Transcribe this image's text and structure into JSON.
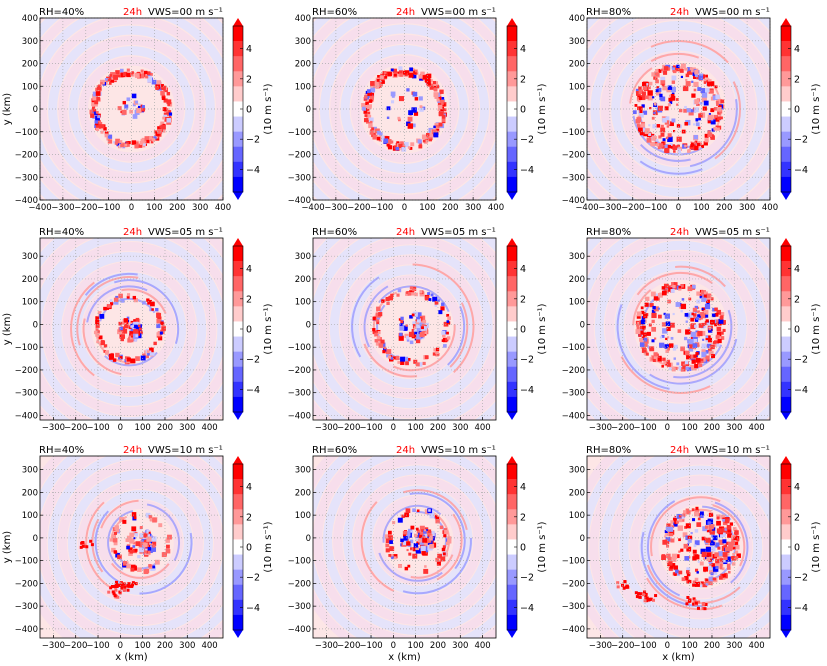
{
  "figure": {
    "time_label": "24h",
    "time_color": "#ff0000",
    "colorbar": {
      "label": "(10 m s⁻¹)",
      "ticks": [
        "4",
        "2",
        "0",
        "−2",
        "−4"
      ],
      "levels": [
        5,
        4,
        3,
        2,
        1,
        0,
        -1,
        -2,
        -3,
        -4,
        -5
      ],
      "colors": [
        "#ff0000",
        "#ff3333",
        "#ff6666",
        "#ff9999",
        "#ffcccc",
        "#ffffff",
        "#ccccff",
        "#9999ff",
        "#6666ff",
        "#3333ff",
        "#0000ff"
      ]
    },
    "xlabel": "x (km)",
    "ylabel": "y (km)",
    "ticks": {
      "row1_x": [
        "−400",
        "−300",
        "−200",
        "−100",
        "0",
        "100",
        "200",
        "300",
        "400"
      ],
      "row1_y": [
        "400",
        "300",
        "200",
        "100",
        "0",
        "−100",
        "−200",
        "−300",
        "−400"
      ],
      "shift_x": [
        "−300",
        "−200",
        "−100",
        "0",
        "100",
        "200",
        "300",
        "400"
      ],
      "shift_y": [
        "300",
        "200",
        "100",
        "0",
        "−100",
        "−200",
        "−300",
        "−400"
      ]
    }
  },
  "chart_data": [
    {
      "type": "heatmap",
      "rh": "RH=40%",
      "vws": "VWS=00 m s⁻¹",
      "xlim": [
        -400,
        400
      ],
      "ylim": [
        -400,
        400
      ],
      "grid": true
    },
    {
      "type": "heatmap",
      "rh": "RH=60%",
      "vws": "VWS=00 m s⁻¹",
      "xlim": [
        -400,
        400
      ],
      "ylim": [
        -400,
        400
      ],
      "grid": true
    },
    {
      "type": "heatmap",
      "rh": "RH=80%",
      "vws": "VWS=00 m s⁻¹",
      "xlim": [
        -400,
        400
      ],
      "ylim": [
        -400,
        400
      ],
      "grid": true
    },
    {
      "type": "heatmap",
      "rh": "RH=40%",
      "vws": "VWS=05 m s⁻¹",
      "xlim": [
        -360,
        460
      ],
      "ylim": [
        -420,
        380
      ],
      "grid": true
    },
    {
      "type": "heatmap",
      "rh": "RH=60%",
      "vws": "VWS=05 m s⁻¹",
      "xlim": [
        -360,
        460
      ],
      "ylim": [
        -420,
        380
      ],
      "grid": true
    },
    {
      "type": "heatmap",
      "rh": "RH=80%",
      "vws": "VWS=05 m s⁻¹",
      "xlim": [
        -360,
        460
      ],
      "ylim": [
        -420,
        380
      ],
      "grid": true
    },
    {
      "type": "heatmap",
      "rh": "RH=40%",
      "vws": "VWS=10 m s⁻¹",
      "xlim": [
        -360,
        460
      ],
      "ylim": [
        -440,
        360
      ],
      "grid": true
    },
    {
      "type": "heatmap",
      "rh": "RH=60%",
      "vws": "VWS=10 m s⁻¹",
      "xlim": [
        -360,
        460
      ],
      "ylim": [
        -440,
        360
      ],
      "grid": true
    },
    {
      "type": "heatmap",
      "rh": "RH=80%",
      "vws": "VWS=10 m s⁻¹",
      "xlim": [
        -360,
        460
      ],
      "ylim": [
        -440,
        360
      ],
      "grid": true
    }
  ]
}
